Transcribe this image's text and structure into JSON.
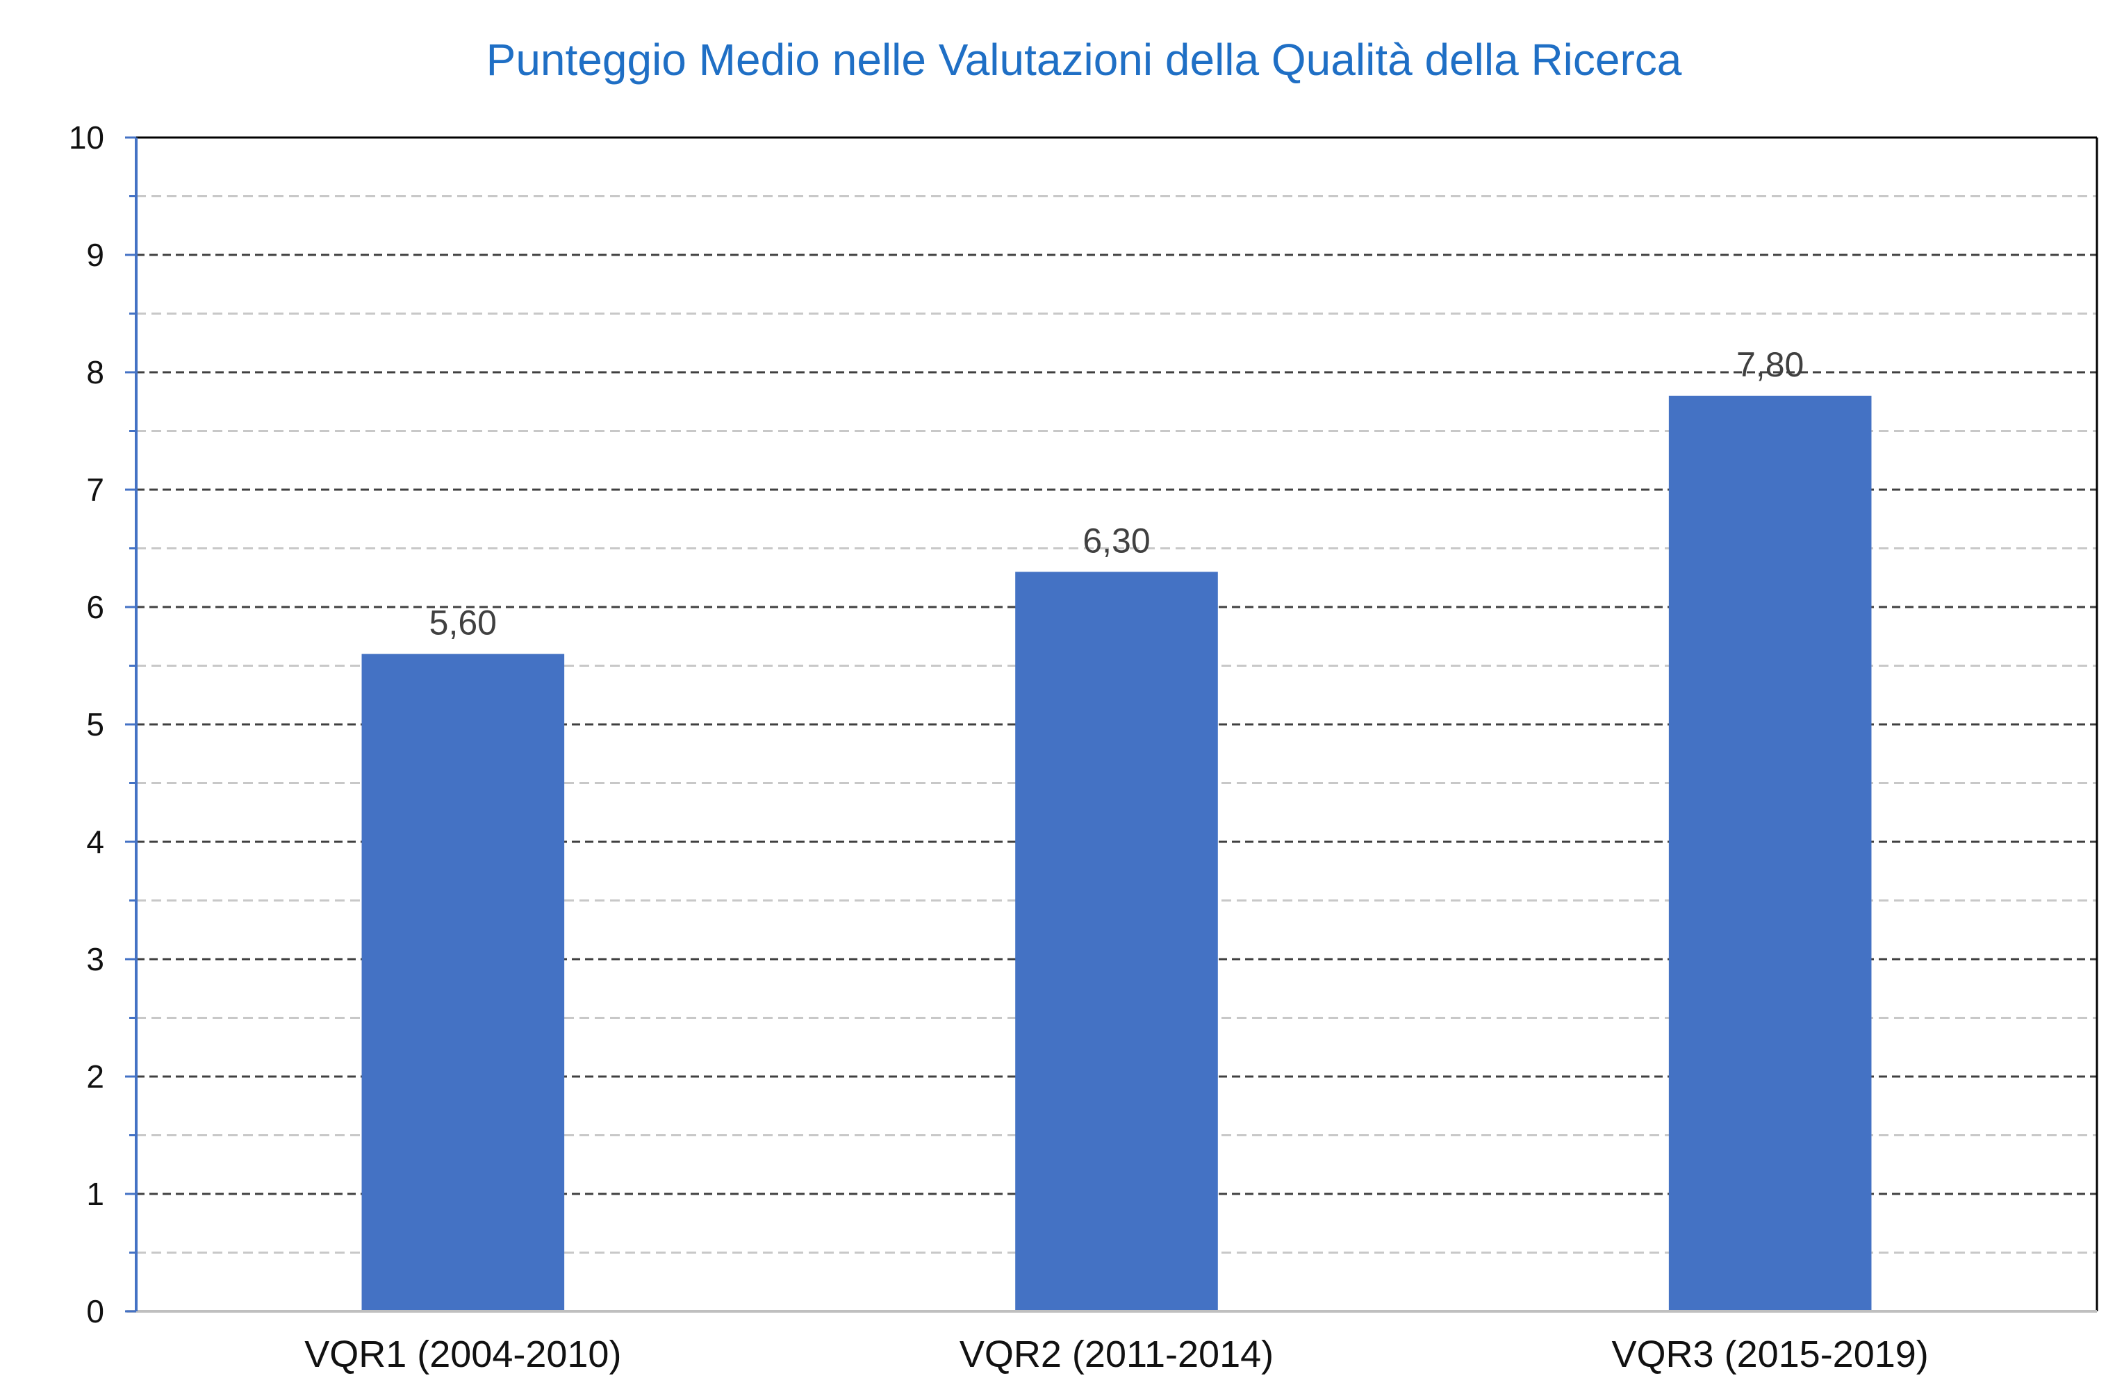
{
  "chart_data": {
    "type": "bar",
    "title": "Punteggio Medio nelle Valutazioni della Qualità della Ricerca",
    "categories": [
      "VQR1 (2004-2010)",
      "VQR2 (2011-2014)",
      "VQR3 (2015-2019)"
    ],
    "values": [
      5.6,
      6.3,
      7.8
    ],
    "data_labels": [
      "5,60",
      "6,30",
      "7,80"
    ],
    "yticks": [
      "0",
      "1",
      "2",
      "3",
      "4",
      "5",
      "6",
      "7",
      "8",
      "9",
      "10"
    ],
    "ylim": [
      0,
      10
    ],
    "minor_step": 0.5,
    "grid": true,
    "legend": "none",
    "colors": {
      "bar": "#4472c4",
      "title": "#1f6fc5",
      "y_axis": "#4472c4",
      "major_grid": "#404040",
      "minor_grid": "#c8c8c8"
    }
  }
}
